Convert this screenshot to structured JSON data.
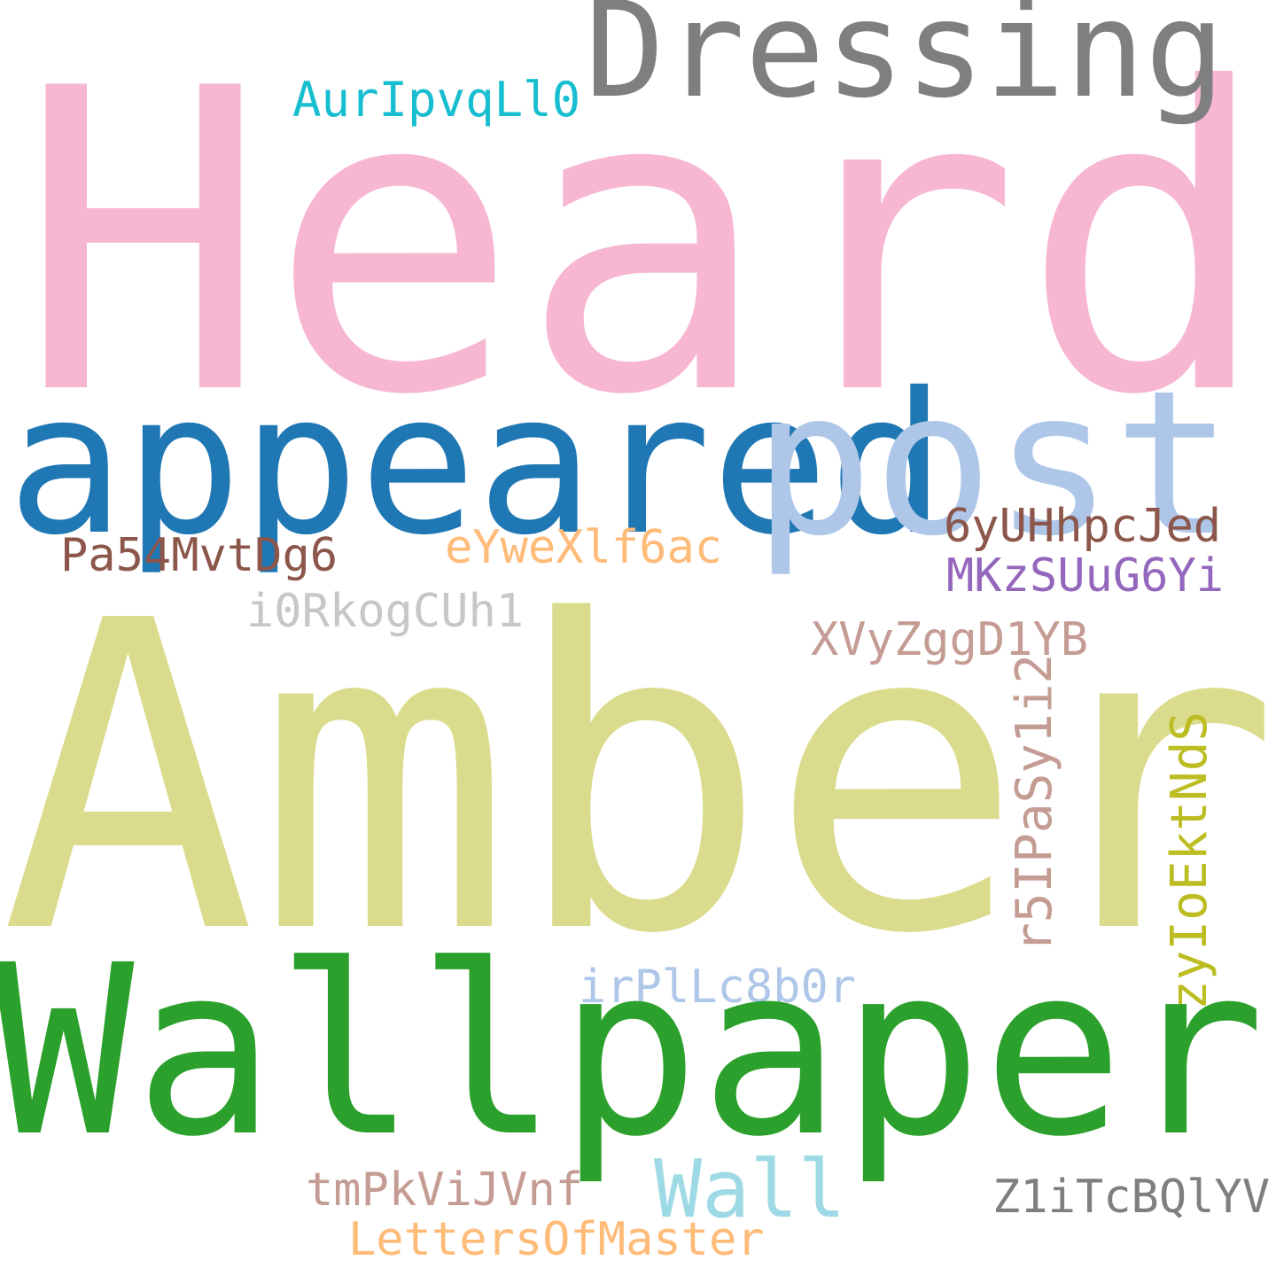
{
  "words": [
    {
      "text": "Heard",
      "color": "#f7b6d2"
    },
    {
      "text": "Dressing",
      "color": "#7f7f7f"
    },
    {
      "text": "AurIpvqLl0",
      "color": "#17becf"
    },
    {
      "text": "appeared",
      "color": "#1f77b4"
    },
    {
      "text": "post",
      "color": "#aec7e8"
    },
    {
      "text": "6yUHhpcJed",
      "color": "#8c564b"
    },
    {
      "text": "MKzSUuG6Yi",
      "color": "#9467bd"
    },
    {
      "text": "Pa54MvtDg6",
      "color": "#8c564b"
    },
    {
      "text": "eYweXlf6ac",
      "color": "#ffbb78"
    },
    {
      "text": "i0RkogCUh1",
      "color": "#c7c7c7"
    },
    {
      "text": "XVyZggD1YB",
      "color": "#c49c94"
    },
    {
      "text": "Amber",
      "color": "#dbdb8d"
    },
    {
      "text": "r5IPaSy1i2",
      "color": "#c49c94"
    },
    {
      "text": "zyIoEktNdS",
      "color": "#bcbd22"
    },
    {
      "text": "irPlLc8b0r",
      "color": "#aec7e8"
    },
    {
      "text": "Wallpaper",
      "color": "#2ca02c"
    },
    {
      "text": "Wall",
      "color": "#9edae5"
    },
    {
      "text": "tmPkViJVnf",
      "color": "#c49c94"
    },
    {
      "text": "Z1iTcBQlYV",
      "color": "#7f7f7f"
    },
    {
      "text": "LettersOfMaster",
      "color": "#ffbb78"
    }
  ]
}
